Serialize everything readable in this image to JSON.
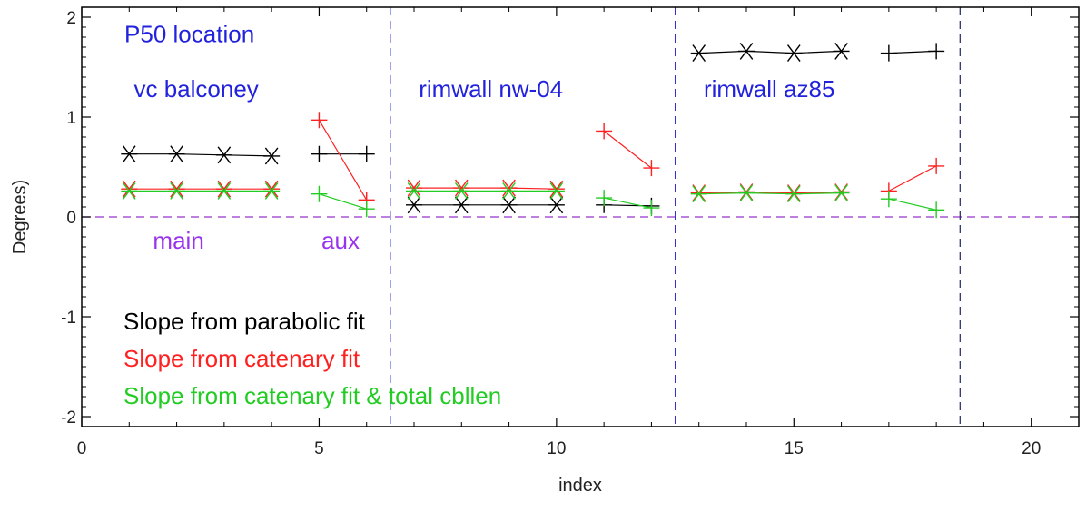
{
  "chart_data": {
    "type": "scatter",
    "title": "",
    "xlabel": "index",
    "ylabel": "Degrees)",
    "xlim": [
      0,
      21
    ],
    "ylim": [
      -2.1,
      2.1
    ],
    "x_ticks": [
      0,
      5,
      10,
      15,
      20
    ],
    "y_ticks": [
      -2,
      -1,
      0,
      1,
      2
    ],
    "grid": false,
    "series": [
      {
        "name": "Slope from parabolic fit",
        "color": "#000000",
        "groups": [
          {
            "marker": "asterisk",
            "points": [
              [
                1,
                0.63
              ],
              [
                2,
                0.63
              ],
              [
                3,
                0.62
              ],
              [
                4,
                0.61
              ]
            ]
          },
          {
            "marker": "plus",
            "points": [
              [
                5,
                0.63
              ],
              [
                6,
                0.63
              ]
            ]
          },
          {
            "marker": "asterisk",
            "points": [
              [
                7,
                0.12
              ],
              [
                8,
                0.12
              ],
              [
                9,
                0.12
              ],
              [
                10,
                0.12
              ]
            ]
          },
          {
            "marker": "plus",
            "points": [
              [
                11,
                0.12
              ],
              [
                12,
                0.11
              ]
            ]
          },
          {
            "marker": "asterisk",
            "points": [
              [
                13,
                1.64
              ],
              [
                14,
                1.66
              ],
              [
                15,
                1.64
              ],
              [
                16,
                1.66
              ]
            ]
          },
          {
            "marker": "plus",
            "points": [
              [
                17,
                1.64
              ],
              [
                18,
                1.66
              ]
            ]
          }
        ]
      },
      {
        "name": "Slope from catenary fit",
        "color": "#ff2020",
        "groups": [
          {
            "marker": "asterisk",
            "points": [
              [
                1,
                0.28
              ],
              [
                2,
                0.28
              ],
              [
                3,
                0.28
              ],
              [
                4,
                0.28
              ]
            ]
          },
          {
            "marker": "plus",
            "points": [
              [
                5,
                0.97
              ],
              [
                6,
                0.17
              ]
            ]
          },
          {
            "marker": "asterisk",
            "points": [
              [
                7,
                0.29
              ],
              [
                8,
                0.29
              ],
              [
                9,
                0.29
              ],
              [
                10,
                0.28
              ]
            ]
          },
          {
            "marker": "plus",
            "points": [
              [
                11,
                0.86
              ],
              [
                12,
                0.49
              ]
            ]
          },
          {
            "marker": "asterisk",
            "points": [
              [
                13,
                0.24
              ],
              [
                14,
                0.25
              ],
              [
                15,
                0.24
              ],
              [
                16,
                0.25
              ]
            ]
          },
          {
            "marker": "plus",
            "points": [
              [
                17,
                0.26
              ],
              [
                18,
                0.51
              ]
            ]
          }
        ]
      },
      {
        "name": "Slope from catenary fit & total cbllen",
        "color": "#22cc22",
        "groups": [
          {
            "marker": "asterisk",
            "points": [
              [
                1,
                0.26
              ],
              [
                2,
                0.26
              ],
              [
                3,
                0.26
              ],
              [
                4,
                0.26
              ]
            ]
          },
          {
            "marker": "plus",
            "points": [
              [
                5,
                0.23
              ],
              [
                6,
                0.08
              ]
            ]
          },
          {
            "marker": "asterisk",
            "points": [
              [
                7,
                0.26
              ],
              [
                8,
                0.26
              ],
              [
                9,
                0.26
              ],
              [
                10,
                0.26
              ]
            ]
          },
          {
            "marker": "plus",
            "points": [
              [
                11,
                0.19
              ],
              [
                12,
                0.09
              ]
            ]
          },
          {
            "marker": "asterisk",
            "points": [
              [
                13,
                0.23
              ],
              [
                14,
                0.24
              ],
              [
                15,
                0.23
              ],
              [
                16,
                0.24
              ]
            ]
          },
          {
            "marker": "plus",
            "points": [
              [
                17,
                0.18
              ],
              [
                18,
                0.07
              ]
            ]
          }
        ]
      }
    ],
    "reference_lines": [
      {
        "orientation": "horizontal",
        "value": 0,
        "color": "#9933cc",
        "style": "dashed"
      },
      {
        "orientation": "vertical",
        "value": 6.5,
        "color": "#3333cc",
        "style": "dashed"
      },
      {
        "orientation": "vertical",
        "value": 12.5,
        "color": "#3333cc",
        "style": "dashed"
      },
      {
        "orientation": "vertical",
        "value": 18.5,
        "color": "#222266",
        "style": "dashed"
      }
    ],
    "annotations": [
      {
        "id": "p50",
        "text": "P50 location",
        "color": "#2222dd",
        "x": 0.9,
        "y": 1.75
      },
      {
        "id": "vc",
        "text": "vc balconey",
        "color": "#2222dd",
        "x": 1.1,
        "y": 1.2
      },
      {
        "id": "nw04",
        "text": "rimwall nw-04",
        "color": "#2222dd",
        "x": 7.1,
        "y": 1.2
      },
      {
        "id": "az85",
        "text": "rimwall az85",
        "color": "#2222dd",
        "x": 13.1,
        "y": 1.2
      },
      {
        "id": "main",
        "text": "main",
        "color": "#9933ee",
        "x": 1.5,
        "y": -0.32
      },
      {
        "id": "aux",
        "text": "aux",
        "color": "#9933ee",
        "x": 5.05,
        "y": -0.32
      }
    ],
    "legend_placement": "bottom-left"
  }
}
